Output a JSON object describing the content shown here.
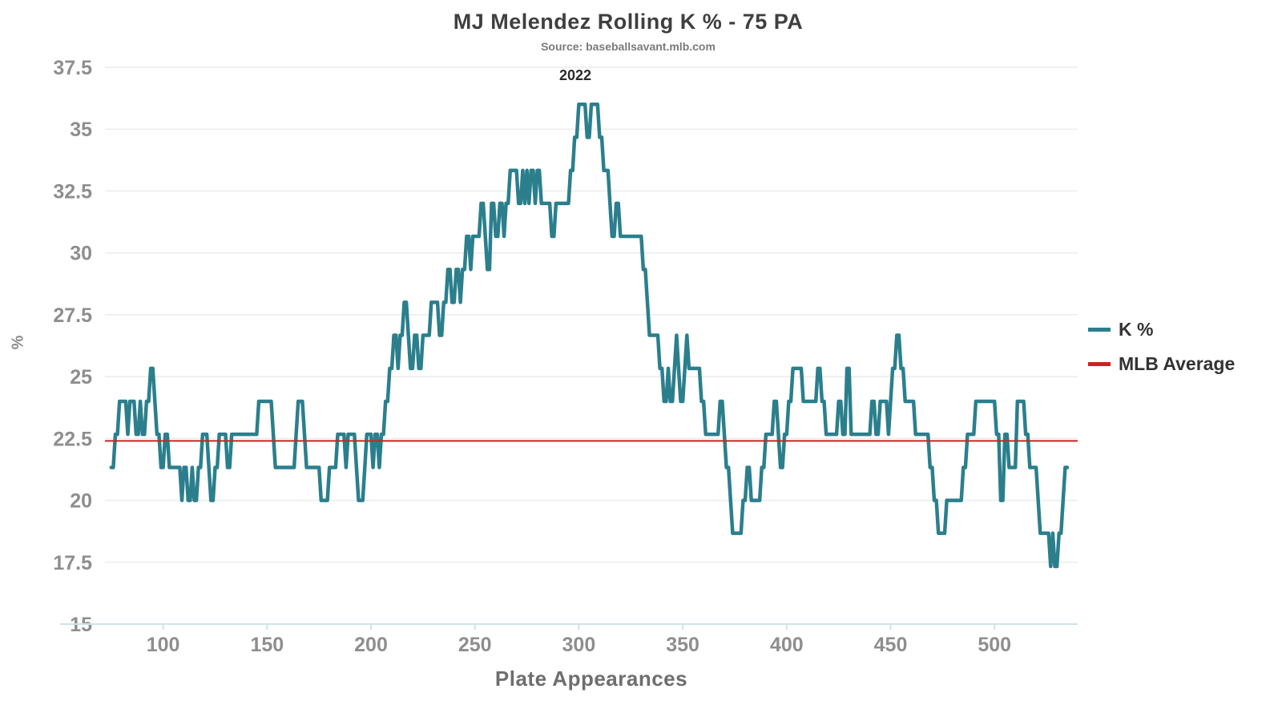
{
  "chart_data": {
    "type": "line",
    "title": "MJ Melendez Rolling K % - 75 PA",
    "subtitle": "Source: baseballsavant.mlb.com",
    "annotation": "2022",
    "xlabel": "Plate Appearances",
    "ylabel": "%",
    "xlim": [
      72,
      540
    ],
    "ylim": [
      15,
      37.5
    ],
    "x_ticks": [
      100,
      150,
      200,
      250,
      300,
      350,
      400,
      450,
      500
    ],
    "y_ticks": [
      15,
      17.5,
      20,
      22.5,
      25,
      27.5,
      30,
      32.5,
      35,
      37.5
    ],
    "grid": "horizontal",
    "legend_position": "right",
    "colors": {
      "grid": "#ececec",
      "axis": "#cfe4e8",
      "tick_label": "#8e8e8e",
      "title": "#3f3f3f"
    },
    "series": [
      {
        "name": "K %",
        "color": "#2b7f8d",
        "type": "line",
        "points": [
          [
            75,
            21.33
          ],
          [
            76,
            21.33
          ],
          [
            77,
            22.67
          ],
          [
            78,
            22.67
          ],
          [
            79,
            24
          ],
          [
            82,
            24
          ],
          [
            83,
            22.67
          ],
          [
            84,
            24
          ],
          [
            86,
            24
          ],
          [
            87,
            22.67
          ],
          [
            88,
            22.67
          ],
          [
            89,
            24
          ],
          [
            90,
            22.67
          ],
          [
            91,
            22.67
          ],
          [
            92,
            24
          ],
          [
            93,
            24
          ],
          [
            94,
            25.33
          ],
          [
            95,
            25.33
          ],
          [
            96,
            24
          ],
          [
            97,
            22.67
          ],
          [
            98,
            22.67
          ],
          [
            99,
            21.33
          ],
          [
            100,
            21.33
          ],
          [
            101,
            22.67
          ],
          [
            102,
            22.67
          ],
          [
            103,
            21.33
          ],
          [
            108,
            21.33
          ],
          [
            109,
            20
          ],
          [
            110,
            21.33
          ],
          [
            111,
            21.33
          ],
          [
            112,
            20
          ],
          [
            113,
            20
          ],
          [
            114,
            21.33
          ],
          [
            115,
            20
          ],
          [
            116,
            20
          ],
          [
            117,
            21.33
          ],
          [
            118,
            21.33
          ],
          [
            119,
            22.67
          ],
          [
            121,
            22.67
          ],
          [
            122,
            21.33
          ],
          [
            123,
            20
          ],
          [
            124,
            20
          ],
          [
            125,
            21.33
          ],
          [
            126,
            21.33
          ],
          [
            127,
            22.67
          ],
          [
            130,
            22.67
          ],
          [
            131,
            21.33
          ],
          [
            132,
            21.33
          ],
          [
            133,
            22.67
          ],
          [
            145,
            22.67
          ],
          [
            146,
            24
          ],
          [
            152,
            24
          ],
          [
            153,
            22.67
          ],
          [
            154,
            21.33
          ],
          [
            163,
            21.33
          ],
          [
            164,
            22.67
          ],
          [
            165,
            24
          ],
          [
            167,
            24
          ],
          [
            168,
            22.67
          ],
          [
            169,
            21.33
          ],
          [
            175,
            21.33
          ],
          [
            176,
            20
          ],
          [
            179,
            20
          ],
          [
            180,
            21.33
          ],
          [
            183,
            21.33
          ],
          [
            184,
            22.67
          ],
          [
            187,
            22.67
          ],
          [
            188,
            21.33
          ],
          [
            189,
            22.67
          ],
          [
            192,
            22.67
          ],
          [
            193,
            21.33
          ],
          [
            194,
            20
          ],
          [
            196,
            20
          ],
          [
            197,
            21.33
          ],
          [
            198,
            22.67
          ],
          [
            200,
            22.67
          ],
          [
            201,
            21.33
          ],
          [
            202,
            22.67
          ],
          [
            203,
            22.67
          ],
          [
            204,
            21.33
          ],
          [
            205,
            22.67
          ],
          [
            206,
            22.67
          ],
          [
            207,
            24
          ],
          [
            208,
            24
          ],
          [
            209,
            25.33
          ],
          [
            210,
            25.33
          ],
          [
            211,
            26.67
          ],
          [
            212,
            26.67
          ],
          [
            213,
            25.33
          ],
          [
            214,
            26.67
          ],
          [
            215,
            26.67
          ],
          [
            216,
            28
          ],
          [
            217,
            28
          ],
          [
            218,
            26.67
          ],
          [
            219,
            25.33
          ],
          [
            220,
            25.33
          ],
          [
            221,
            26.67
          ],
          [
            222,
            26.67
          ],
          [
            223,
            25.33
          ],
          [
            224,
            25.33
          ],
          [
            225,
            26.67
          ],
          [
            228,
            26.67
          ],
          [
            229,
            28
          ],
          [
            232,
            28
          ],
          [
            233,
            26.67
          ],
          [
            234,
            26.67
          ],
          [
            235,
            28
          ],
          [
            236,
            28
          ],
          [
            237,
            29.33
          ],
          [
            238,
            29.33
          ],
          [
            239,
            28
          ],
          [
            240,
            28
          ],
          [
            241,
            29.33
          ],
          [
            242,
            29.33
          ],
          [
            243,
            28
          ],
          [
            244,
            29.33
          ],
          [
            245,
            29.33
          ],
          [
            246,
            30.67
          ],
          [
            247,
            30.67
          ],
          [
            248,
            29.33
          ],
          [
            249,
            30.67
          ],
          [
            252,
            30.67
          ],
          [
            253,
            32
          ],
          [
            254,
            32
          ],
          [
            255,
            30.67
          ],
          [
            256,
            29.33
          ],
          [
            257,
            29.33
          ],
          [
            258,
            32
          ],
          [
            259,
            32
          ],
          [
            260,
            30.67
          ],
          [
            261,
            30.67
          ],
          [
            262,
            32
          ],
          [
            263,
            32
          ],
          [
            264,
            30.67
          ],
          [
            265,
            32
          ],
          [
            266,
            32
          ],
          [
            267,
            33.33
          ],
          [
            270,
            33.33
          ],
          [
            271,
            32
          ],
          [
            272,
            32
          ],
          [
            273,
            33.33
          ],
          [
            274,
            32
          ],
          [
            275,
            33.33
          ],
          [
            276,
            32
          ],
          [
            277,
            33.33
          ],
          [
            278,
            33.33
          ],
          [
            279,
            32
          ],
          [
            280,
            33.33
          ],
          [
            281,
            33.33
          ],
          [
            282,
            32
          ],
          [
            286,
            32
          ],
          [
            287,
            30.67
          ],
          [
            288,
            30.67
          ],
          [
            289,
            32
          ],
          [
            295,
            32
          ],
          [
            296,
            33.33
          ],
          [
            297,
            33.33
          ],
          [
            298,
            34.67
          ],
          [
            299,
            34.67
          ],
          [
            300,
            36
          ],
          [
            303,
            36
          ],
          [
            304,
            34.67
          ],
          [
            305,
            34.67
          ],
          [
            306,
            36
          ],
          [
            309,
            36
          ],
          [
            310,
            34.67
          ],
          [
            311,
            34.67
          ],
          [
            312,
            33.33
          ],
          [
            314,
            33.33
          ],
          [
            315,
            32
          ],
          [
            316,
            30.67
          ],
          [
            317,
            30.67
          ],
          [
            318,
            32
          ],
          [
            319,
            32
          ],
          [
            320,
            30.67
          ],
          [
            330,
            30.67
          ],
          [
            331,
            29.33
          ],
          [
            332,
            29.33
          ],
          [
            333,
            28
          ],
          [
            334,
            26.67
          ],
          [
            338,
            26.67
          ],
          [
            339,
            25.33
          ],
          [
            340,
            25.33
          ],
          [
            341,
            24
          ],
          [
            342,
            24
          ],
          [
            343,
            25.33
          ],
          [
            344,
            24
          ],
          [
            345,
            24
          ],
          [
            346,
            25.33
          ],
          [
            347,
            26.67
          ],
          [
            348,
            25.33
          ],
          [
            349,
            24
          ],
          [
            350,
            24
          ],
          [
            351,
            25.33
          ],
          [
            352,
            26.67
          ],
          [
            353,
            25.33
          ],
          [
            357,
            25.33
          ],
          [
            358,
            25.33
          ],
          [
            359,
            24
          ],
          [
            360,
            24
          ],
          [
            361,
            22.67
          ],
          [
            367,
            22.67
          ],
          [
            368,
            24
          ],
          [
            369,
            24
          ],
          [
            370,
            22.67
          ],
          [
            371,
            21.33
          ],
          [
            372,
            21.33
          ],
          [
            373,
            20
          ],
          [
            374,
            18.67
          ],
          [
            378,
            18.67
          ],
          [
            379,
            20
          ],
          [
            380,
            20
          ],
          [
            381,
            21.33
          ],
          [
            382,
            21.33
          ],
          [
            383,
            20
          ],
          [
            387,
            20
          ],
          [
            388,
            21.33
          ],
          [
            389,
            21.33
          ],
          [
            390,
            22.67
          ],
          [
            393,
            22.67
          ],
          [
            394,
            24
          ],
          [
            395,
            24
          ],
          [
            396,
            22.67
          ],
          [
            397,
            21.33
          ],
          [
            398,
            21.33
          ],
          [
            399,
            22.67
          ],
          [
            400,
            22.67
          ],
          [
            401,
            24
          ],
          [
            402,
            24
          ],
          [
            403,
            25.33
          ],
          [
            407,
            25.33
          ],
          [
            408,
            24
          ],
          [
            414,
            24
          ],
          [
            415,
            25.33
          ],
          [
            416,
            25.33
          ],
          [
            417,
            24
          ],
          [
            418,
            24
          ],
          [
            419,
            22.67
          ],
          [
            424,
            22.67
          ],
          [
            425,
            24
          ],
          [
            426,
            24
          ],
          [
            427,
            22.67
          ],
          [
            428,
            22.67
          ],
          [
            429,
            25.33
          ],
          [
            430,
            25.33
          ],
          [
            431,
            22.67
          ],
          [
            440,
            22.67
          ],
          [
            441,
            24
          ],
          [
            442,
            24
          ],
          [
            443,
            22.67
          ],
          [
            444,
            22.67
          ],
          [
            445,
            24
          ],
          [
            448,
            24
          ],
          [
            449,
            22.67
          ],
          [
            450,
            24
          ],
          [
            451,
            25.33
          ],
          [
            452,
            25.33
          ],
          [
            453,
            26.67
          ],
          [
            454,
            26.67
          ],
          [
            455,
            25.33
          ],
          [
            456,
            25.33
          ],
          [
            457,
            24
          ],
          [
            461,
            24
          ],
          [
            462,
            22.67
          ],
          [
            468,
            22.67
          ],
          [
            469,
            21.33
          ],
          [
            470,
            21.33
          ],
          [
            471,
            20
          ],
          [
            472,
            20
          ],
          [
            473,
            18.67
          ],
          [
            476,
            18.67
          ],
          [
            477,
            20
          ],
          [
            484,
            20
          ],
          [
            485,
            21.33
          ],
          [
            486,
            21.33
          ],
          [
            487,
            22.67
          ],
          [
            490,
            22.67
          ],
          [
            491,
            24
          ],
          [
            500,
            24
          ],
          [
            501,
            22.67
          ],
          [
            502,
            22.67
          ],
          [
            503,
            20
          ],
          [
            504,
            20
          ],
          [
            505,
            22.67
          ],
          [
            506,
            22.67
          ],
          [
            507,
            21.33
          ],
          [
            510,
            21.33
          ],
          [
            511,
            24
          ],
          [
            514,
            24
          ],
          [
            515,
            22.67
          ],
          [
            516,
            22.67
          ],
          [
            517,
            21.33
          ],
          [
            520,
            21.33
          ],
          [
            521,
            20
          ],
          [
            522,
            18.67
          ],
          [
            526,
            18.67
          ],
          [
            527,
            17.33
          ],
          [
            528,
            18.67
          ],
          [
            529,
            17.33
          ],
          [
            530,
            17.33
          ],
          [
            531,
            18.67
          ],
          [
            532,
            18.67
          ],
          [
            533,
            20
          ],
          [
            534,
            21.33
          ],
          [
            535,
            21.33
          ]
        ]
      },
      {
        "name": "MLB Average",
        "color": "#cc2222",
        "type": "hline",
        "value": 22.4
      }
    ]
  }
}
